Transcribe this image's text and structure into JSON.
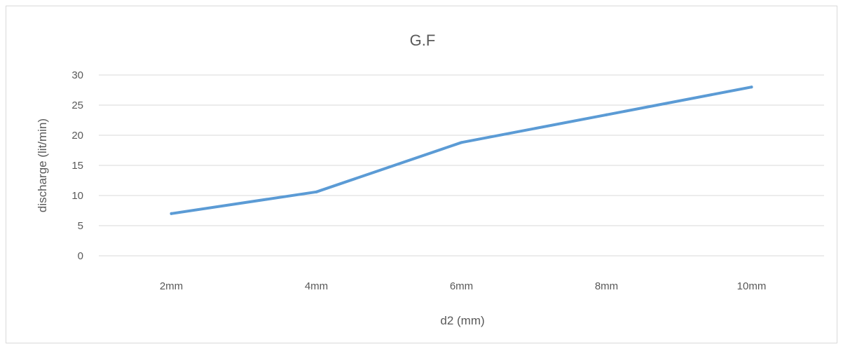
{
  "chart_data": {
    "type": "line",
    "title": "G.F",
    "xlabel": "d2 (mm)",
    "ylabel": "discharge (lit/min)",
    "categories": [
      "2mm",
      "4mm",
      "6mm",
      "8mm",
      "10mm"
    ],
    "series": [
      {
        "values": [
          7.0,
          10.6,
          18.8,
          23.4,
          28.0
        ]
      }
    ],
    "ylim": [
      0,
      30
    ],
    "yticks": [
      0,
      5,
      10,
      15,
      20,
      25,
      30
    ],
    "grid": true,
    "legend": "none",
    "line_color": "#5b9bd5",
    "grid_color": "#d9d9d9",
    "text_color": "#595959"
  }
}
